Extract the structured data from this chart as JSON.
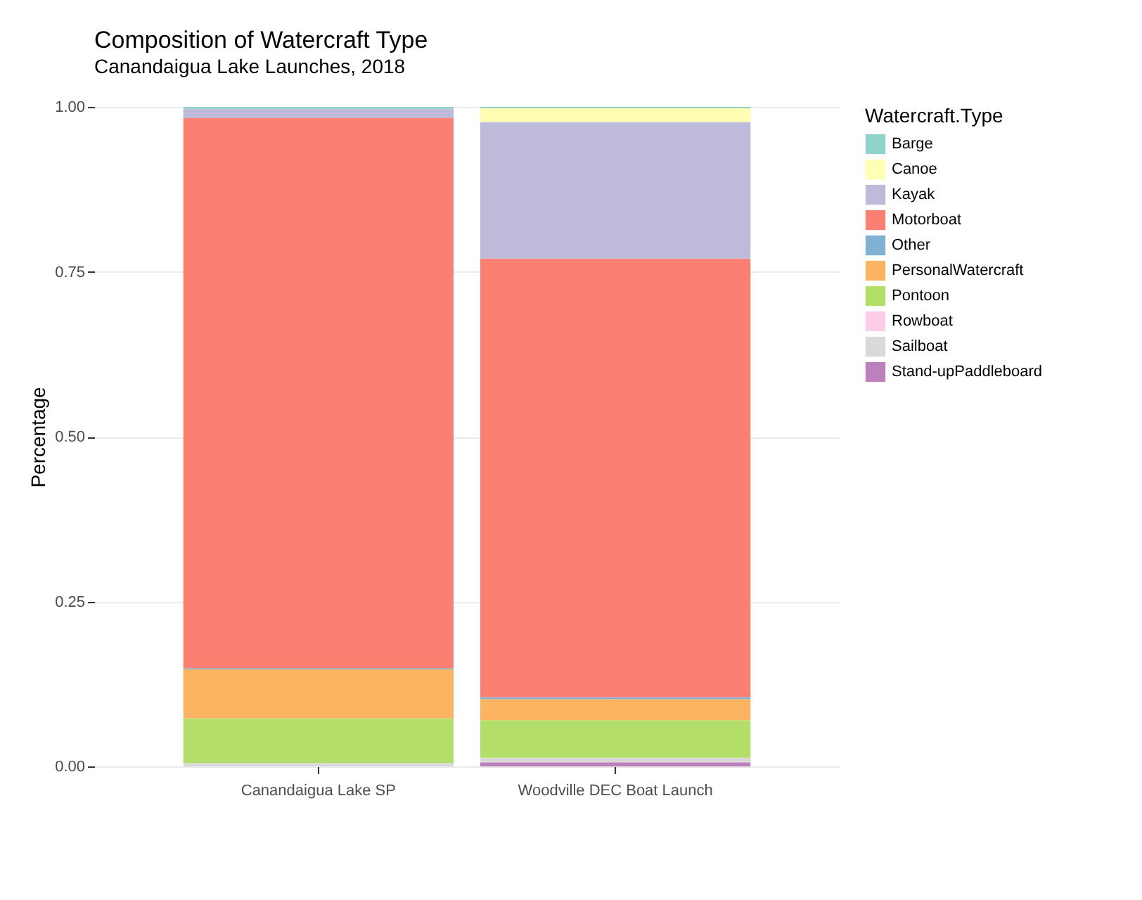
{
  "chart_data": {
    "type": "bar",
    "title": "Composition of Watercraft Type",
    "subtitle": "Canandaigua Lake Launches, 2018",
    "ylabel": "Percentage",
    "legend_title": "Watercraft.Type",
    "categories": [
      "Canandaigua Lake SP",
      "Woodville DEC Boat Launch"
    ],
    "stacked": true,
    "ylim": [
      0,
      1
    ],
    "yticks": [
      {
        "value": 0,
        "label": "0.00"
      },
      {
        "value": 0.25,
        "label": "0.25"
      },
      {
        "value": 0.5,
        "label": "0.50"
      },
      {
        "value": 0.75,
        "label": "0.75"
      },
      {
        "value": 1,
        "label": "1.00"
      }
    ],
    "grid": true,
    "legend": "right",
    "series": [
      {
        "name": "Stand-upPaddleboard",
        "color": "#bc80bd",
        "values": [
          0,
          0.006
        ]
      },
      {
        "name": "Sailboat",
        "color": "#d9d9d9",
        "values": [
          0.005,
          0.007
        ]
      },
      {
        "name": "Rowboat",
        "color": "#fccde5",
        "values": [
          0,
          0
        ]
      },
      {
        "name": "Pontoon",
        "color": "#b3de69",
        "values": [
          0.068,
          0.057
        ]
      },
      {
        "name": "PersonalWatercraft",
        "color": "#fdb462",
        "values": [
          0.074,
          0.032
        ]
      },
      {
        "name": "Other",
        "color": "#80b1d3",
        "values": [
          0.002,
          0.003
        ]
      },
      {
        "name": "Motorboat",
        "color": "#fb8072",
        "values": [
          0.834,
          0.665
        ]
      },
      {
        "name": "Kayak",
        "color": "#bebada",
        "values": [
          0.014,
          0.207
        ]
      },
      {
        "name": "Canoe",
        "color": "#ffffb3",
        "values": [
          null,
          0.021
        ]
      },
      {
        "name": "Barge",
        "color": "#8dd3c7",
        "values": [
          0.003,
          0.002
        ]
      }
    ]
  }
}
